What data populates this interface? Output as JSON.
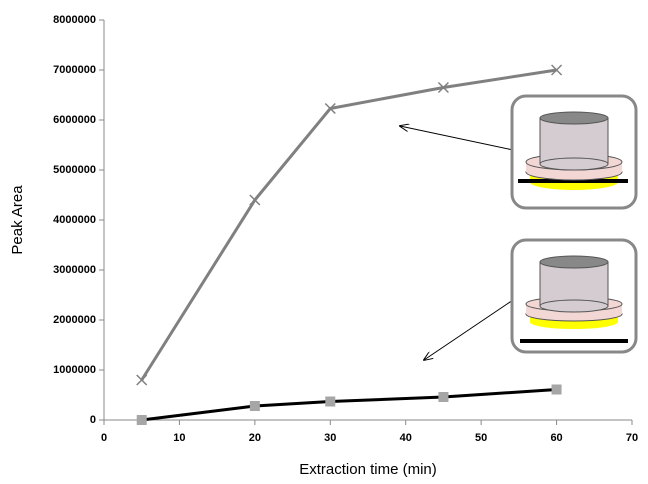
{
  "chart_data": {
    "type": "line",
    "x_label": "Extraction time (min)",
    "y_label": "Peak Area",
    "x": [
      5,
      20,
      30,
      45,
      60
    ],
    "series": [
      {
        "color": "#808080",
        "marker": "x",
        "marker_color": "#808080",
        "values": [
          800000,
          4400000,
          6230000,
          6650000,
          7000000
        ]
      },
      {
        "color": "#000000",
        "marker": "square",
        "marker_color": "#a6a6a6",
        "values": [
          0,
          280000,
          370000,
          460000,
          610000
        ]
      }
    ],
    "xlim": [
      0,
      70
    ],
    "xticks": [
      0,
      10,
      20,
      30,
      40,
      50,
      60,
      70
    ],
    "ylim": [
      0,
      8000000
    ],
    "yticks": [
      0,
      1000000,
      2000000,
      3000000,
      4000000,
      5000000,
      6000000,
      7000000,
      8000000
    ],
    "grid": false
  }
}
